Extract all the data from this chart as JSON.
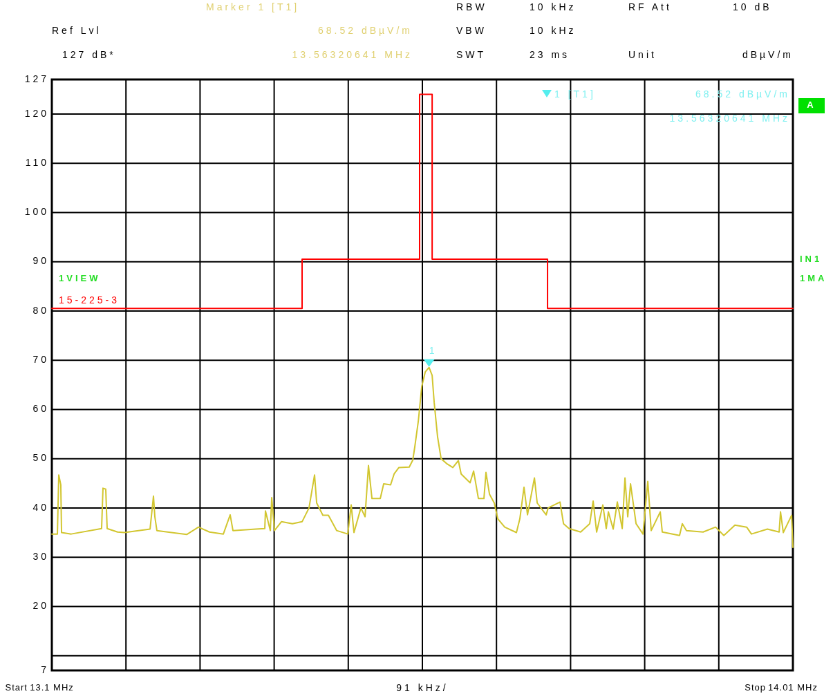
{
  "chart_data": {
    "type": "line",
    "xlabel": "91 kHz/",
    "xlim": [
      13.1,
      14.01
    ],
    "xticks": [
      {
        "value": 13.1,
        "label": "13.1 MHz"
      },
      {
        "value": 13.191,
        "label": null
      },
      {
        "value": 13.282,
        "label": null
      },
      {
        "value": 13.373,
        "label": null
      },
      {
        "value": 13.464,
        "label": null
      },
      {
        "value": 13.555,
        "label": null
      },
      {
        "value": 13.646,
        "label": null
      },
      {
        "value": 13.737,
        "label": null
      },
      {
        "value": 13.828,
        "label": null
      },
      {
        "value": 13.919,
        "label": null
      },
      {
        "value": 14.01,
        "label": "14.01 MHz"
      }
    ],
    "ylim": [
      7,
      127
    ],
    "yticks": [
      7,
      {
        "value": 10,
        "label": null
      },
      20,
      30,
      40,
      50,
      60,
      70,
      80,
      90,
      100,
      110,
      120,
      127
    ],
    "grid": true,
    "series": [
      {
        "color": "#d2c630",
        "x": [
          13.1,
          13.1068,
          13.1085,
          13.111,
          13.1119,
          13.1238,
          13.1611,
          13.1628,
          13.1662,
          13.1679,
          13.1807,
          13.1891,
          13.2206,
          13.2248,
          13.2265,
          13.229,
          13.2656,
          13.28,
          13.2936,
          13.3106,
          13.319,
          13.3224,
          13.3505,
          13.3615,
          13.3623,
          13.3683,
          13.37,
          13.3734,
          13.3819,
          13.3954,
          13.4073,
          13.4158,
          13.4226,
          13.4252,
          13.4328,
          13.4396,
          13.4498,
          13.4634,
          13.4676,
          13.471,
          13.4795,
          13.4846,
          13.4888,
          13.4931,
          13.5033,
          13.5075,
          13.516,
          13.5203,
          13.5262,
          13.5389,
          13.5432,
          13.5457,
          13.55,
          13.5542,
          13.5585,
          13.5632,
          13.567,
          13.5695,
          13.5737,
          13.578,
          13.5856,
          13.5924,
          13.5992,
          13.6026,
          13.6136,
          13.6179,
          13.6238,
          13.6306,
          13.6331,
          13.6374,
          13.6433,
          13.6476,
          13.6561,
          13.6705,
          13.6747,
          13.6798,
          13.6841,
          13.6926,
          13.696,
          13.707,
          13.7095,
          13.724,
          13.7283,
          13.7351,
          13.7494,
          13.7605,
          13.7647,
          13.769,
          13.7766,
          13.7808,
          13.7834,
          13.7893,
          13.7944,
          13.8004,
          13.8038,
          13.8072,
          13.8106,
          13.8174,
          13.8259,
          13.8318,
          13.836,
          13.8471,
          13.8496,
          13.8708,
          13.8742,
          13.8793,
          13.8997,
          13.915,
          13.9252,
          13.9388,
          13.9532,
          13.9591,
          13.9787,
          13.9931,
          13.9948,
          13.9982,
          14.0084,
          14.01
        ],
        "values": [
          34.7,
          34.7,
          46.7,
          44.7,
          35.0,
          34.7,
          35.8,
          44.0,
          43.8,
          35.8,
          35.1,
          35.0,
          35.7,
          42.4,
          38.2,
          35.4,
          34.6,
          36.1,
          35.1,
          34.7,
          38.6,
          35.4,
          35.7,
          35.8,
          39.4,
          35.4,
          42.1,
          35.4,
          37.2,
          36.8,
          37.2,
          40.0,
          46.7,
          41.0,
          38.5,
          38.5,
          35.4,
          34.7,
          40.6,
          35.0,
          40.0,
          38.2,
          48.6,
          41.9,
          41.9,
          44.9,
          44.7,
          46.9,
          48.2,
          48.3,
          49.7,
          52.4,
          57.6,
          64.6,
          67.6,
          68.52,
          66.9,
          61.4,
          54.4,
          50.0,
          48.9,
          48.2,
          49.6,
          46.9,
          45.1,
          47.5,
          41.9,
          41.9,
          47.2,
          42.8,
          41.0,
          37.8,
          36.1,
          35.0,
          37.8,
          44.2,
          38.6,
          46.1,
          41.0,
          38.6,
          40.0,
          41.2,
          36.8,
          35.8,
          35.1,
          36.8,
          41.4,
          35.1,
          40.6,
          35.8,
          39.2,
          35.7,
          41.2,
          35.8,
          46.1,
          38.2,
          44.9,
          36.8,
          34.7,
          45.4,
          35.4,
          39.2,
          35.1,
          34.4,
          36.8,
          35.4,
          35.1,
          36.1,
          34.4,
          36.5,
          36.1,
          34.7,
          35.7,
          35.1,
          39.2,
          35.0,
          38.5,
          32.0
        ]
      },
      {
        "name": "15-225-3",
        "color": "#ff0000",
        "x": [
          13.1,
          13.4073,
          13.4073,
          13.5516,
          13.5516,
          13.567,
          13.567,
          13.7087,
          13.7087,
          14.01
        ],
        "values": [
          80.5,
          80.5,
          90.5,
          90.5,
          124,
          124,
          90.5,
          90.5,
          80.5,
          80.5
        ]
      }
    ],
    "annotations": [
      "Marker 1 [T1]",
      "Ref Lvl",
      "68.52 dBµV/m",
      "127 dB*",
      "13.56320641 MHz",
      "RBW",
      "10 kHz",
      "RF Att",
      "10 dB",
      "VBW",
      "10 kHz",
      "SWT",
      "23 ms",
      "Unit",
      "dBµV/m",
      "1 [T1]",
      "68.52 dBµV/m",
      "13.56320641 MHz",
      "A",
      "1VIEW",
      "IN1",
      "1MA",
      "Start",
      "Stop",
      {
        "text": "1",
        "x": 13.5632,
        "y": 68.52
      }
    ]
  }
}
